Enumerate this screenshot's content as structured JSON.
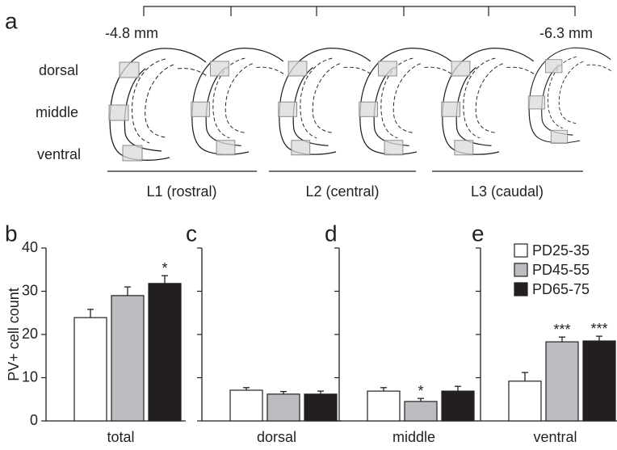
{
  "diagram": {
    "label": "a",
    "scale": [
      "-4.8 mm",
      "-6.3 mm"
    ],
    "regions": [
      "dorsal",
      "middle",
      "ventral"
    ],
    "levels": [
      "L1 (rostral)",
      "L2 (central)",
      "L3 (caudal)"
    ]
  },
  "chart_data": [
    {
      "type": "bar",
      "label": "b",
      "ylabel": "PV+ cell count",
      "categories": [
        "total"
      ],
      "ylim": [
        0,
        40
      ],
      "yticks": [
        0,
        10,
        20,
        30,
        40
      ],
      "series": [
        {
          "color": "#ffffff",
          "values": [
            23.9
          ],
          "errors": [
            1.9
          ]
        },
        {
          "color": "#bbbcc0",
          "values": [
            29.0
          ],
          "errors": [
            2.0
          ]
        },
        {
          "color": "#231f20",
          "values": [
            31.8
          ],
          "errors": [
            1.8
          ],
          "significance": [
            "*"
          ]
        }
      ]
    },
    {
      "type": "bar",
      "label": "c",
      "sharey": true,
      "categories": [
        "dorsal"
      ],
      "series": [
        {
          "color": "#ffffff",
          "values": [
            7.1
          ],
          "errors": [
            0.6
          ]
        },
        {
          "color": "#bbbcc0",
          "values": [
            6.2
          ],
          "errors": [
            0.6
          ]
        },
        {
          "color": "#231f20",
          "values": [
            6.2
          ],
          "errors": [
            0.7
          ]
        }
      ]
    },
    {
      "type": "bar",
      "label": "d",
      "sharey": true,
      "categories": [
        "middle"
      ],
      "series": [
        {
          "color": "#ffffff",
          "values": [
            6.9
          ],
          "errors": [
            0.8
          ]
        },
        {
          "color": "#bbbcc0",
          "values": [
            4.5
          ],
          "errors": [
            0.7
          ],
          "significance": [
            "*"
          ]
        },
        {
          "color": "#231f20",
          "values": [
            6.9
          ],
          "errors": [
            1.1
          ]
        }
      ]
    },
    {
      "type": "bar",
      "label": "e",
      "sharey": true,
      "categories": [
        "ventral"
      ],
      "legend": "upper right",
      "series": [
        {
          "name": "PD25-35",
          "color": "#ffffff",
          "values": [
            9.2
          ],
          "errors": [
            2.0
          ]
        },
        {
          "name": "PD45-55",
          "color": "#bbbcc0",
          "values": [
            18.3
          ],
          "errors": [
            1.1
          ],
          "significance": [
            "***"
          ]
        },
        {
          "name": "PD65-75",
          "color": "#231f20",
          "values": [
            18.5
          ],
          "errors": [
            1.1
          ],
          "significance": [
            "***"
          ]
        }
      ]
    }
  ]
}
